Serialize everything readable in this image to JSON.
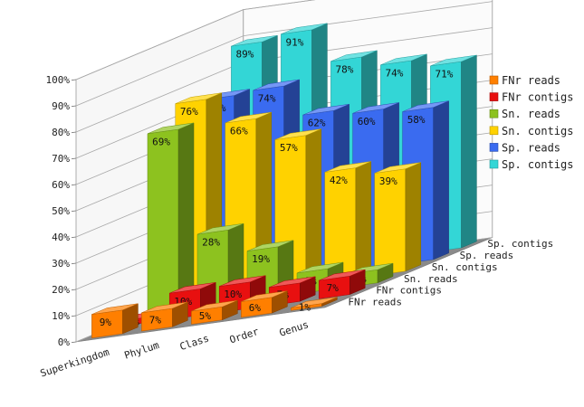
{
  "chart_data": {
    "type": "bar",
    "subtype": "3d-grouped",
    "categories": [
      "Superkingdom",
      "Phylum",
      "Class",
      "Order",
      "Genus"
    ],
    "series": [
      {
        "name": "FNr reads",
        "color": "#FF7F00",
        "values": [
          9,
          7,
          5,
          6,
          1
        ]
      },
      {
        "name": "FNr contigs",
        "color": "#E81010",
        "values": [
          2,
          10,
          10,
          7,
          7
        ]
      },
      {
        "name": "Sn. reads",
        "color": "#8DC21F",
        "values": [
          69,
          28,
          19,
          8,
          5
        ]
      },
      {
        "name": "Sn. contigs",
        "color": "#FFD200",
        "values": [
          76,
          66,
          57,
          42,
          39
        ]
      },
      {
        "name": "Sp. reads",
        "color": "#3A6BF0",
        "values": [
          73,
          74,
          62,
          60,
          58
        ]
      },
      {
        "name": "Sp. contigs",
        "color": "#33D6D6",
        "values": [
          89,
          91,
          78,
          74,
          71
        ]
      }
    ],
    "y_ticks": [
      "0%",
      "10%",
      "20%",
      "30%",
      "40%",
      "50%",
      "60%",
      "70%",
      "80%",
      "90%",
      "100%"
    ],
    "ylim": [
      0,
      100
    ],
    "value_suffix": "%",
    "grid": true,
    "legend_position": "right"
  }
}
